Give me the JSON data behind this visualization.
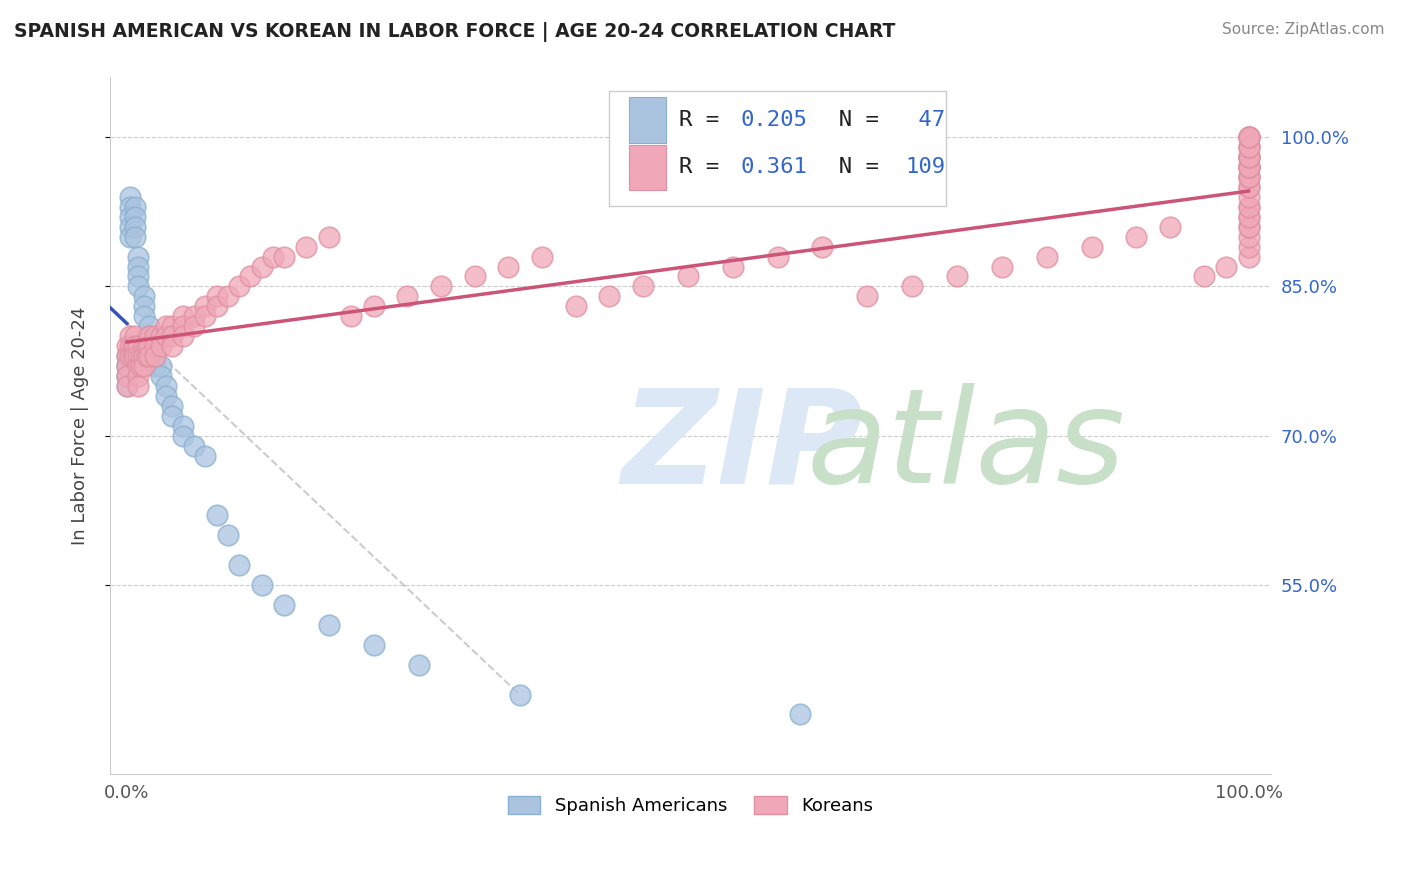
{
  "title": "SPANISH AMERICAN VS KOREAN IN LABOR FORCE | AGE 20-24 CORRELATION CHART",
  "source": "Source: ZipAtlas.com",
  "ylabel": "In Labor Force | Age 20-24",
  "blue_R": 0.205,
  "blue_N": 47,
  "pink_R": 0.361,
  "pink_N": 109,
  "blue_color": "#aac4e0",
  "pink_color": "#f0a8b8",
  "blue_edge_color": "#8ab0d0",
  "pink_edge_color": "#e090a0",
  "blue_line_color": "#3355bb",
  "pink_line_color": "#cc5577",
  "stat_color": "#3366cc",
  "ytick_vals": [
    0.55,
    0.7,
    0.85,
    1.0
  ],
  "ytick_labels": [
    "55.0%",
    "70.0%",
    "85.0%",
    "100.0%"
  ],
  "xlim": [
    -0.015,
    1.02
  ],
  "ylim": [
    0.36,
    1.06
  ],
  "spanish_x": [
    0.0,
    0.0,
    0.0,
    0.0,
    0.0,
    0.0,
    0.003,
    0.003,
    0.003,
    0.003,
    0.003,
    0.007,
    0.007,
    0.007,
    0.007,
    0.01,
    0.01,
    0.01,
    0.01,
    0.015,
    0.015,
    0.015,
    0.02,
    0.02,
    0.02,
    0.025,
    0.025,
    0.03,
    0.03,
    0.035,
    0.035,
    0.04,
    0.04,
    0.05,
    0.05,
    0.06,
    0.07,
    0.08,
    0.09,
    0.1,
    0.12,
    0.14,
    0.18,
    0.22,
    0.26,
    0.35,
    0.6
  ],
  "spanish_y": [
    0.78,
    0.76,
    0.77,
    0.75,
    0.76,
    0.77,
    0.94,
    0.93,
    0.92,
    0.91,
    0.9,
    0.93,
    0.92,
    0.91,
    0.9,
    0.88,
    0.87,
    0.86,
    0.85,
    0.84,
    0.83,
    0.82,
    0.81,
    0.8,
    0.79,
    0.78,
    0.77,
    0.77,
    0.76,
    0.75,
    0.74,
    0.73,
    0.72,
    0.71,
    0.7,
    0.69,
    0.68,
    0.62,
    0.6,
    0.57,
    0.55,
    0.53,
    0.51,
    0.49,
    0.47,
    0.44,
    0.42
  ],
  "korean_x": [
    0.0,
    0.0,
    0.0,
    0.0,
    0.0,
    0.003,
    0.003,
    0.003,
    0.005,
    0.005,
    0.007,
    0.007,
    0.007,
    0.01,
    0.01,
    0.01,
    0.01,
    0.01,
    0.013,
    0.013,
    0.015,
    0.015,
    0.015,
    0.018,
    0.018,
    0.02,
    0.02,
    0.02,
    0.025,
    0.025,
    0.025,
    0.03,
    0.03,
    0.035,
    0.035,
    0.04,
    0.04,
    0.04,
    0.05,
    0.05,
    0.05,
    0.06,
    0.06,
    0.07,
    0.07,
    0.08,
    0.08,
    0.09,
    0.1,
    0.11,
    0.12,
    0.13,
    0.14,
    0.16,
    0.18,
    0.2,
    0.22,
    0.25,
    0.28,
    0.31,
    0.34,
    0.37,
    0.4,
    0.43,
    0.46,
    0.5,
    0.54,
    0.58,
    0.62,
    0.66,
    0.7,
    0.74,
    0.78,
    0.82,
    0.86,
    0.9,
    0.93,
    0.96,
    0.98,
    1.0,
    1.0,
    1.0,
    1.0,
    1.0,
    1.0,
    1.0,
    1.0,
    1.0,
    1.0,
    1.0,
    1.0,
    1.0,
    1.0,
    1.0,
    1.0,
    1.0,
    1.0,
    1.0,
    1.0,
    1.0,
    1.0,
    1.0,
    1.0,
    1.0,
    1.0,
    1.0,
    1.0,
    1.0,
    1.0
  ],
  "korean_y": [
    0.79,
    0.78,
    0.77,
    0.76,
    0.75,
    0.8,
    0.79,
    0.78,
    0.79,
    0.78,
    0.8,
    0.79,
    0.78,
    0.79,
    0.78,
    0.77,
    0.76,
    0.75,
    0.78,
    0.77,
    0.79,
    0.78,
    0.77,
    0.79,
    0.78,
    0.8,
    0.79,
    0.78,
    0.8,
    0.79,
    0.78,
    0.8,
    0.79,
    0.81,
    0.8,
    0.81,
    0.8,
    0.79,
    0.82,
    0.81,
    0.8,
    0.82,
    0.81,
    0.83,
    0.82,
    0.84,
    0.83,
    0.84,
    0.85,
    0.86,
    0.87,
    0.88,
    0.88,
    0.89,
    0.9,
    0.82,
    0.83,
    0.84,
    0.85,
    0.86,
    0.87,
    0.88,
    0.83,
    0.84,
    0.85,
    0.86,
    0.87,
    0.88,
    0.89,
    0.84,
    0.85,
    0.86,
    0.87,
    0.88,
    0.89,
    0.9,
    0.91,
    0.86,
    0.87,
    0.88,
    0.89,
    0.9,
    0.91,
    0.92,
    0.93,
    0.91,
    0.92,
    0.93,
    0.94,
    0.95,
    0.96,
    0.97,
    0.95,
    0.96,
    0.97,
    0.98,
    0.96,
    0.97,
    0.98,
    0.97,
    0.98,
    0.99,
    1.0,
    0.98,
    0.99,
    1.0,
    0.99,
    1.0,
    1.0
  ]
}
